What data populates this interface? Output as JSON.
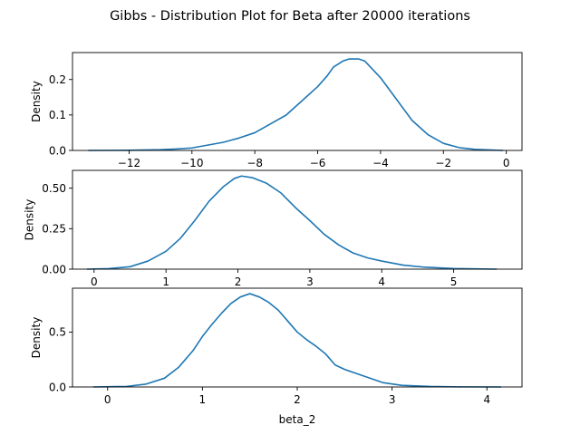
{
  "title": "Gibbs - Distribution Plot for Beta after 20000 iterations",
  "line_color": "#1f77b4",
  "chart_data": [
    {
      "type": "line",
      "xlabel": "",
      "ylabel": "Density",
      "xlim": [
        -13.8,
        0.5
      ],
      "ylim": [
        0,
        0.276
      ],
      "xticks": [
        -12,
        -10,
        -8,
        -6,
        -4,
        -2,
        0
      ],
      "xtick_labels": [
        "−12",
        "−10",
        "−8",
        "−6",
        "−4",
        "−2",
        "0"
      ],
      "yticks": [
        0.0,
        0.1,
        0.2
      ],
      "ytick_labels": [
        "0.0",
        "0.1",
        "0.2"
      ],
      "x": [
        -13.3,
        -12.0,
        -11.0,
        -10.5,
        -10.0,
        -9.5,
        -9.0,
        -8.5,
        -8.0,
        -7.5,
        -7.0,
        -6.5,
        -6.0,
        -5.7,
        -5.5,
        -5.2,
        -5.0,
        -4.7,
        -4.5,
        -4.0,
        -3.5,
        -3.0,
        -2.5,
        -2.0,
        -1.5,
        -1.0,
        -0.1
      ],
      "y": [
        0.0,
        0.0005,
        0.002,
        0.004,
        0.007,
        0.015,
        0.023,
        0.035,
        0.05,
        0.075,
        0.1,
        0.14,
        0.18,
        0.21,
        0.235,
        0.252,
        0.258,
        0.258,
        0.252,
        0.205,
        0.145,
        0.085,
        0.045,
        0.02,
        0.008,
        0.003,
        0.0
      ]
    },
    {
      "type": "line",
      "xlabel": "",
      "ylabel": "Density",
      "xlim": [
        -0.3,
        5.95
      ],
      "ylim": [
        0,
        0.61
      ],
      "xticks": [
        0,
        1,
        2,
        3,
        4,
        5
      ],
      "xtick_labels": [
        "0",
        "1",
        "2",
        "3",
        "4",
        "5"
      ],
      "yticks": [
        0.0,
        0.25,
        0.5
      ],
      "ytick_labels": [
        "0.00",
        "0.25",
        "0.50"
      ],
      "x": [
        -0.1,
        0.2,
        0.5,
        0.75,
        1.0,
        1.2,
        1.4,
        1.6,
        1.8,
        1.95,
        2.05,
        2.2,
        2.4,
        2.6,
        2.8,
        3.0,
        3.2,
        3.4,
        3.6,
        3.8,
        4.0,
        4.3,
        4.6,
        5.0,
        5.6
      ],
      "y": [
        0.0,
        0.003,
        0.015,
        0.05,
        0.11,
        0.19,
        0.3,
        0.42,
        0.51,
        0.56,
        0.575,
        0.565,
        0.53,
        0.47,
        0.38,
        0.3,
        0.215,
        0.15,
        0.1,
        0.07,
        0.05,
        0.025,
        0.012,
        0.004,
        0.0
      ]
    },
    {
      "type": "line",
      "xlabel": "beta_2",
      "ylabel": "Density",
      "xlim": [
        -0.37,
        4.37
      ],
      "ylim": [
        0,
        0.9
      ],
      "xticks": [
        0,
        1,
        2,
        3,
        4
      ],
      "xtick_labels": [
        "0",
        "1",
        "2",
        "3",
        "4"
      ],
      "yticks": [
        0.0,
        0.5
      ],
      "ytick_labels": [
        "0.0",
        "0.5"
      ],
      "x": [
        -0.15,
        0.2,
        0.4,
        0.6,
        0.75,
        0.9,
        1.0,
        1.1,
        1.2,
        1.3,
        1.4,
        1.5,
        1.6,
        1.7,
        1.8,
        1.9,
        2.0,
        2.1,
        2.2,
        2.3,
        2.4,
        2.5,
        2.7,
        2.9,
        3.1,
        3.4,
        3.7,
        4.15
      ],
      "y": [
        0.0,
        0.005,
        0.025,
        0.08,
        0.18,
        0.33,
        0.46,
        0.57,
        0.67,
        0.76,
        0.82,
        0.85,
        0.82,
        0.77,
        0.7,
        0.6,
        0.5,
        0.43,
        0.37,
        0.3,
        0.2,
        0.16,
        0.1,
        0.04,
        0.015,
        0.005,
        0.001,
        0.0
      ]
    }
  ]
}
